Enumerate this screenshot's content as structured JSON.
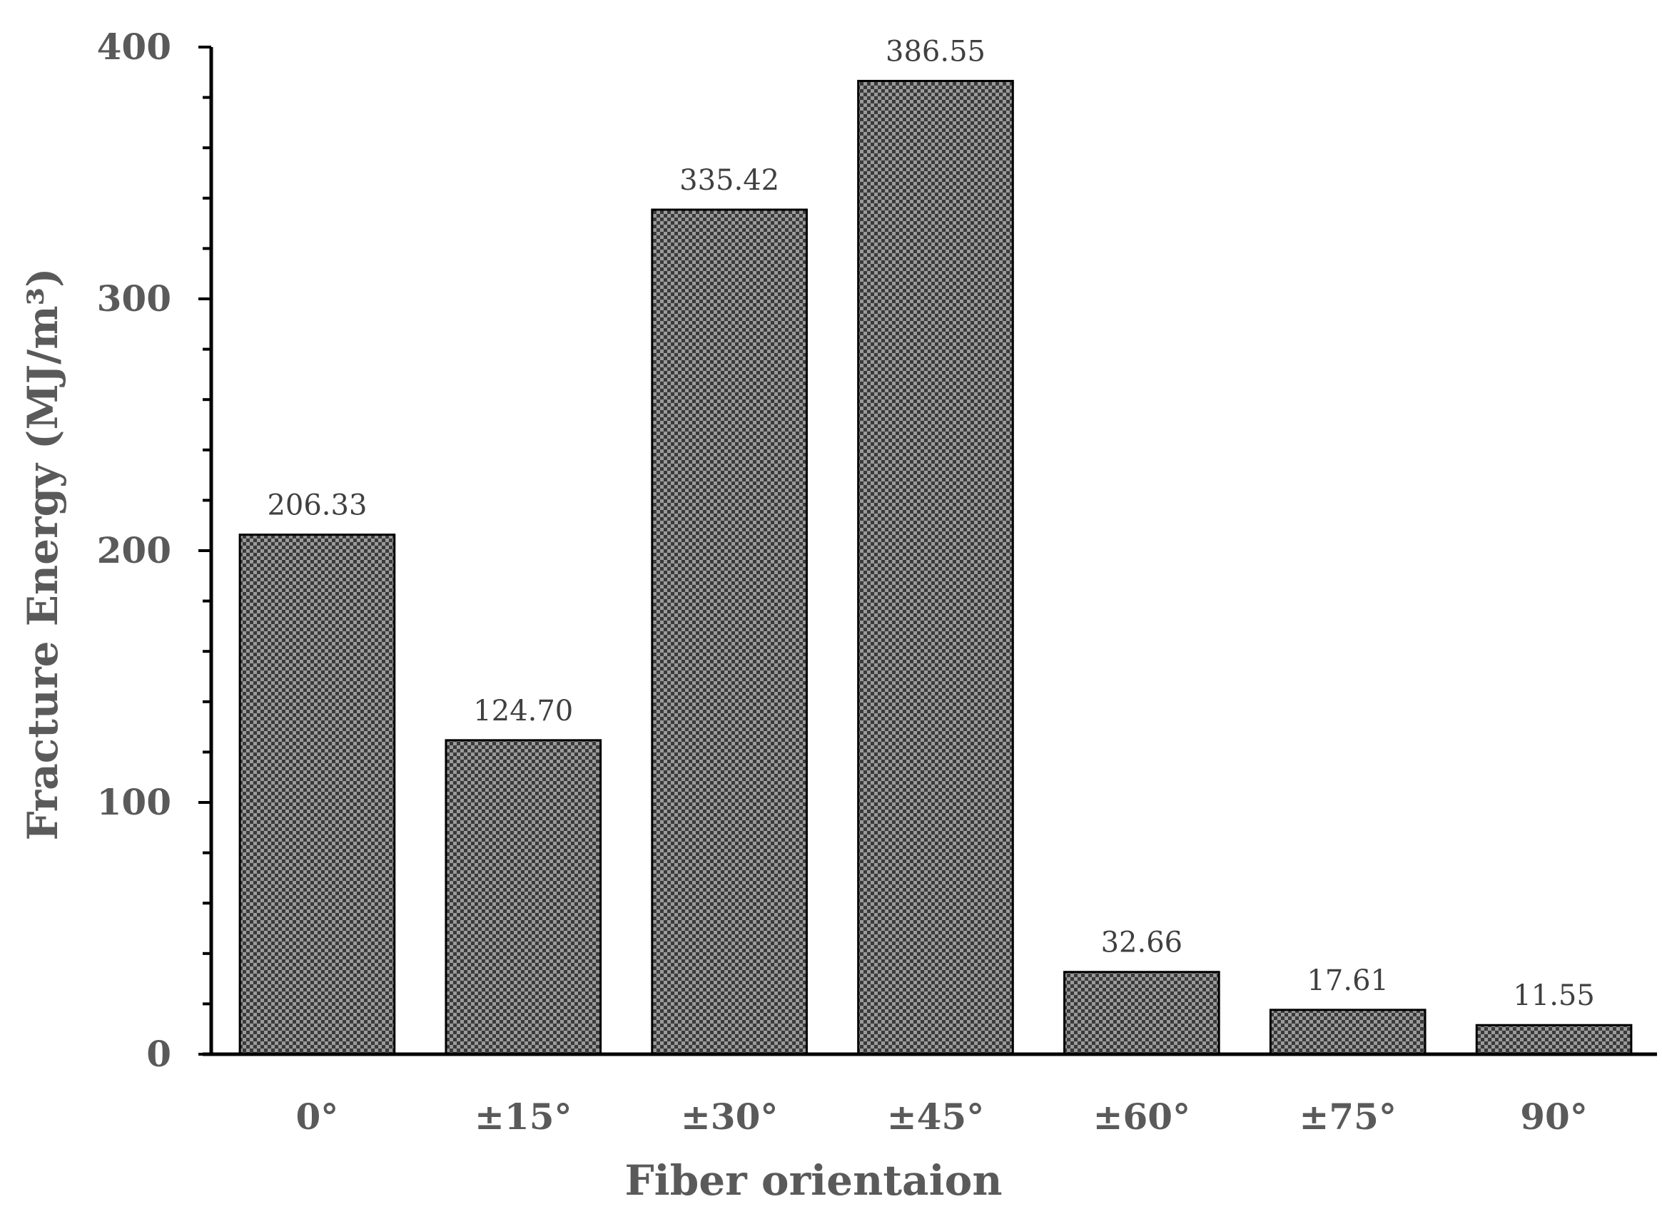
{
  "chart_data": {
    "type": "bar",
    "title": "",
    "xlabel": "Fiber orientaion",
    "ylabel": "Fracture Energy (MJ/m³)",
    "categories": [
      "0°",
      "±15°",
      "±30°",
      "±45°",
      "±60°",
      "±75°",
      "90°"
    ],
    "values": [
      206.33,
      124.7,
      335.42,
      386.55,
      32.66,
      17.61,
      11.55
    ],
    "data_labels": [
      "206.33",
      "124.70",
      "335.42",
      "386.55",
      "32.66",
      "17.61",
      "11.55"
    ],
    "ylim": [
      0,
      400
    ],
    "yticks": [
      0,
      100,
      200,
      300,
      400
    ],
    "ytick_labels": [
      "0",
      "100",
      "200",
      "300",
      "400"
    ],
    "minor_tick_step": 20,
    "grid": false,
    "legend": "none",
    "colors": {
      "bar_pattern_dark": "#3a3a3a",
      "bar_pattern_light": "#9a9a9a",
      "bar_stroke": "#000000",
      "axis": "#000000",
      "text": "#5a5a5a"
    }
  }
}
